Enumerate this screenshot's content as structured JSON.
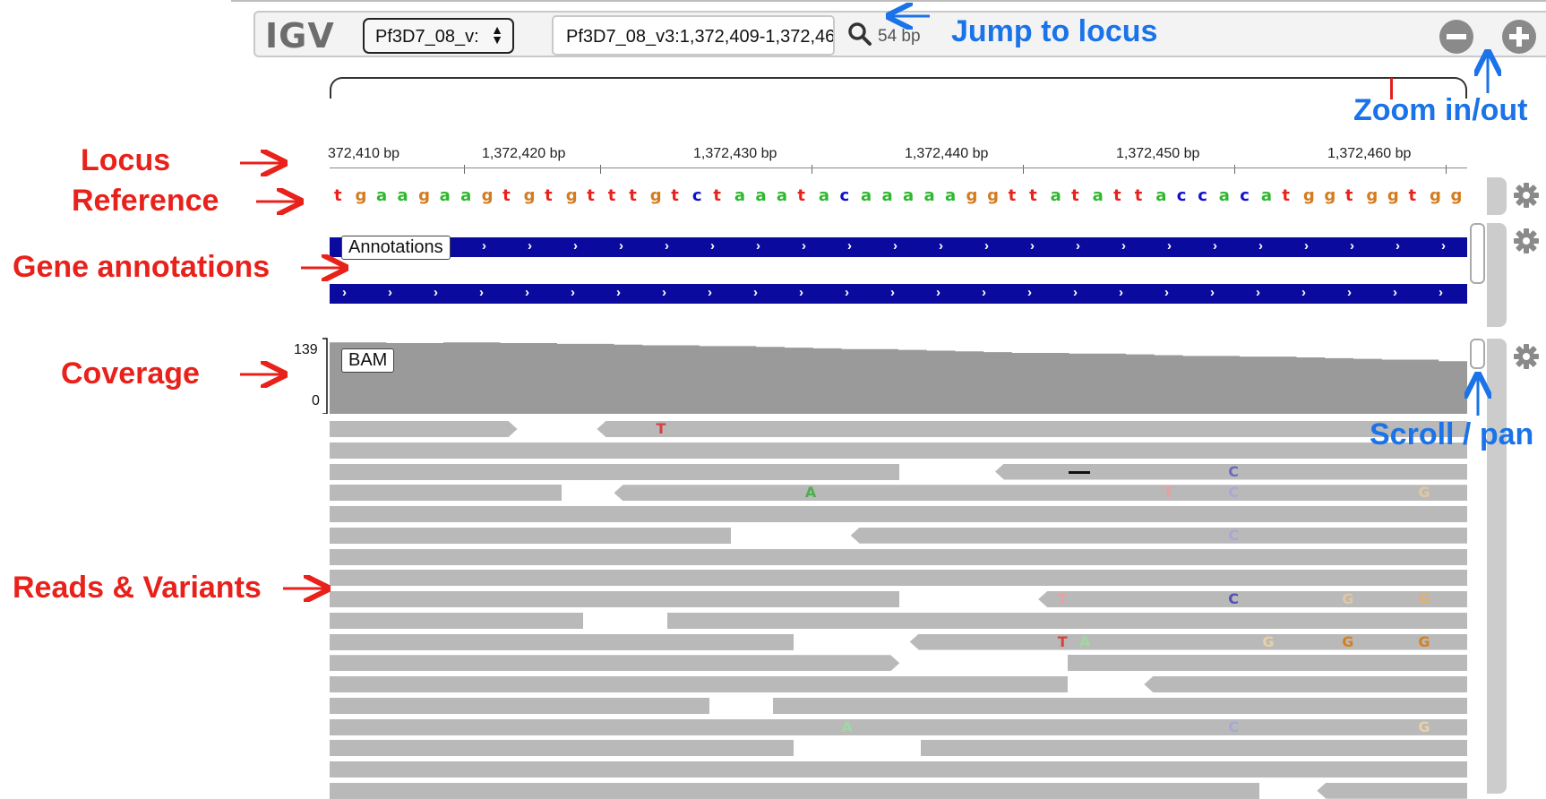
{
  "app": {
    "logo": "IGV"
  },
  "navbar": {
    "chromosome": "Pf3D7_08_v:",
    "locus": "Pf3D7_08_v3:1,372,409-1,372,46",
    "width_label": "54 bp"
  },
  "ruler": {
    "labels": [
      "372,410 bp",
      "1,372,420 bp",
      "1,372,430 bp",
      "1,372,440 bp",
      "1,372,450 bp",
      "1,372,460 bp"
    ]
  },
  "reference": {
    "sequence": "tgaagaagtgtgtttgtctaaatacaaaaaggttatattaccacatggtggtgg",
    "colors": {
      "a": "#2db82d",
      "c": "#1111cc",
      "g": "#d47b1f",
      "t": "#e8211b"
    }
  },
  "tracks": {
    "annotations_label": "Annotations",
    "bam_label": "BAM",
    "coverage_max": "139",
    "coverage_min": "0"
  },
  "callouts": {
    "jump": "Jump to locus",
    "zoom": "Zoom in/out",
    "scroll": "Scroll / pan",
    "locus": "Locus",
    "reference": "Reference",
    "gene": "Gene annotations",
    "coverage": "Coverage",
    "reads": "Reads & Variants"
  },
  "reads": [
    {
      "segs": [
        [
          0,
          0.165,
          ">"
        ],
        [
          0.235,
          1,
          "<"
        ]
      ]
    },
    {
      "segs": [
        [
          0,
          1,
          ""
        ]
      ]
    },
    {
      "segs": [
        [
          0,
          0.501,
          ""
        ],
        [
          0.585,
          1,
          "<"
        ]
      ]
    },
    {
      "segs": [
        [
          0,
          0.204,
          ""
        ],
        [
          0.25,
          1,
          "<"
        ]
      ]
    },
    {
      "segs": [
        [
          0,
          1,
          ""
        ]
      ]
    },
    {
      "segs": [
        [
          0,
          0.353,
          ""
        ],
        [
          0.458,
          1,
          "<"
        ]
      ]
    },
    {
      "segs": [
        [
          0,
          1,
          ""
        ]
      ]
    },
    {
      "segs": [
        [
          0,
          1,
          ""
        ]
      ]
    },
    {
      "segs": [
        [
          0,
          0.501,
          ""
        ],
        [
          0.623,
          1,
          "<"
        ]
      ]
    },
    {
      "segs": [
        [
          0,
          0.223,
          ""
        ],
        [
          0.297,
          1,
          ""
        ]
      ]
    },
    {
      "segs": [
        [
          0,
          0.408,
          ""
        ],
        [
          0.51,
          1,
          "<"
        ]
      ]
    },
    {
      "segs": [
        [
          0,
          0.501,
          ">"
        ],
        [
          0.649,
          1,
          ""
        ]
      ]
    },
    {
      "segs": [
        [
          0,
          0.649,
          ""
        ],
        [
          0.716,
          1,
          "<"
        ]
      ]
    },
    {
      "segs": [
        [
          0,
          0.334,
          ""
        ],
        [
          0.39,
          1,
          ""
        ]
      ]
    },
    {
      "segs": [
        [
          0,
          1,
          ""
        ]
      ]
    },
    {
      "segs": [
        [
          0,
          0.408,
          ""
        ],
        [
          0.52,
          1,
          ""
        ]
      ]
    },
    {
      "segs": [
        [
          0,
          1,
          ""
        ]
      ]
    },
    {
      "segs": [
        [
          0,
          0.817,
          ""
        ],
        [
          0.868,
          1,
          "<"
        ]
      ]
    }
  ],
  "variants": [
    {
      "row": 0,
      "pos": 0.287,
      "base": "T",
      "color": "#d94040"
    },
    {
      "row": 2,
      "pos": 0.79,
      "base": "C",
      "color": "#6a6ac0"
    },
    {
      "row": 3,
      "pos": 0.418,
      "base": "A",
      "color": "#4caf50"
    },
    {
      "row": 3,
      "pos": 0.733,
      "base": "T",
      "color": "#e8a0a0"
    },
    {
      "row": 3,
      "pos": 0.79,
      "base": "C",
      "color": "#a8a8d8"
    },
    {
      "row": 3,
      "pos": 0.957,
      "base": "G",
      "color": "#e0c8a0"
    },
    {
      "row": 5,
      "pos": 0.79,
      "base": "C",
      "color": "#a8a8d8"
    },
    {
      "row": 8,
      "pos": 0.64,
      "base": "T",
      "color": "#e8a0a0"
    },
    {
      "row": 8,
      "pos": 0.79,
      "base": "C",
      "color": "#5050b8"
    },
    {
      "row": 8,
      "pos": 0.89,
      "base": "G",
      "color": "#e0c8a0"
    },
    {
      "row": 8,
      "pos": 0.957,
      "base": "G",
      "color": "#e0b070"
    },
    {
      "row": 10,
      "pos": 0.64,
      "base": "T",
      "color": "#d94040"
    },
    {
      "row": 10,
      "pos": 0.659,
      "base": "A",
      "color": "#a0d8a0"
    },
    {
      "row": 10,
      "pos": 0.82,
      "base": "G",
      "color": "#e8d0a8"
    },
    {
      "row": 10,
      "pos": 0.89,
      "base": "G",
      "color": "#d48020"
    },
    {
      "row": 10,
      "pos": 0.957,
      "base": "G",
      "color": "#d48020"
    },
    {
      "row": 14,
      "pos": 0.45,
      "base": "A",
      "color": "#a0d8a0"
    },
    {
      "row": 14,
      "pos": 0.79,
      "base": "C",
      "color": "#a8a8d8"
    },
    {
      "row": 14,
      "pos": 0.957,
      "base": "G",
      "color": "#e8d0a8"
    }
  ],
  "coverage_profile": [
    0.95,
    0.95,
    0.94,
    0.94,
    0.95,
    0.95,
    0.94,
    0.94,
    0.93,
    0.93,
    0.92,
    0.91,
    0.91,
    0.9,
    0.9,
    0.89,
    0.88,
    0.87,
    0.86,
    0.86,
    0.85,
    0.84,
    0.83,
    0.82,
    0.81,
    0.81,
    0.8,
    0.8,
    0.79,
    0.78,
    0.77,
    0.77,
    0.76,
    0.76,
    0.75,
    0.74,
    0.73,
    0.72,
    0.72,
    0.7
  ]
}
